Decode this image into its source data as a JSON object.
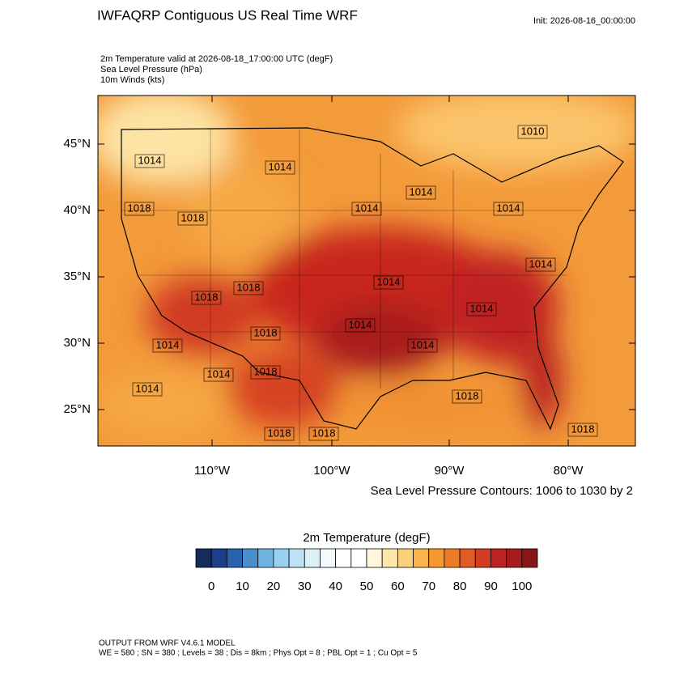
{
  "title": "IWFAQRP Contiguous US Real Time WRF",
  "init": "Init: 2026-08-16_00:00:00",
  "fields": [
    "2m Temperature valid at 2026-08-18_17:00:00 UTC   (degF)",
    "Sea Level Pressure   (hPa)",
    "10m Winds   (kts)"
  ],
  "map": {
    "lat_labels": [
      "45°N",
      "40°N",
      "35°N",
      "30°N",
      "25°N"
    ],
    "lon_labels": [
      "110°W",
      "100°W",
      "90°W",
      "80°W"
    ],
    "contour_labels": [
      "1010",
      "1014",
      "1014",
      "1014",
      "1014",
      "1014",
      "1018",
      "1018",
      "1014",
      "1014",
      "1018",
      "1018",
      "1014",
      "1014",
      "1018",
      "1014",
      "1014",
      "1014",
      "1018",
      "1014",
      "1018",
      "1018",
      "1018",
      "1018"
    ]
  },
  "contour_note": "Sea Level Pressure Contours: 1006 to 1030 by 2",
  "colorbar": {
    "title": "2m Temperature  (degF)",
    "colors": [
      "#162a5c",
      "#1c3f8a",
      "#2a62b0",
      "#4a8fcc",
      "#70b3e0",
      "#99d0f0",
      "#bde2f5",
      "#dcf0f8",
      "#f4f9fb",
      "#ffffff",
      "#ffffff",
      "#fff6dc",
      "#fde8ac",
      "#fbd07a",
      "#f9b44a",
      "#f4982f",
      "#ec7b26",
      "#e15b25",
      "#d33d24",
      "#bd2222",
      "#a51c1f",
      "#861618"
    ],
    "labels": [
      "0",
      "10",
      "20",
      "30",
      "40",
      "50",
      "60",
      "70",
      "80",
      "90",
      "100"
    ]
  },
  "footer": [
    "OUTPUT FROM WRF V4.6.1 MODEL",
    "WE = 580 ; SN = 380 ; Levels = 38 ; Dis = 8km ; Phys Opt = 8 ; PBL Opt = 1 ; Cu Opt = 5"
  ]
}
